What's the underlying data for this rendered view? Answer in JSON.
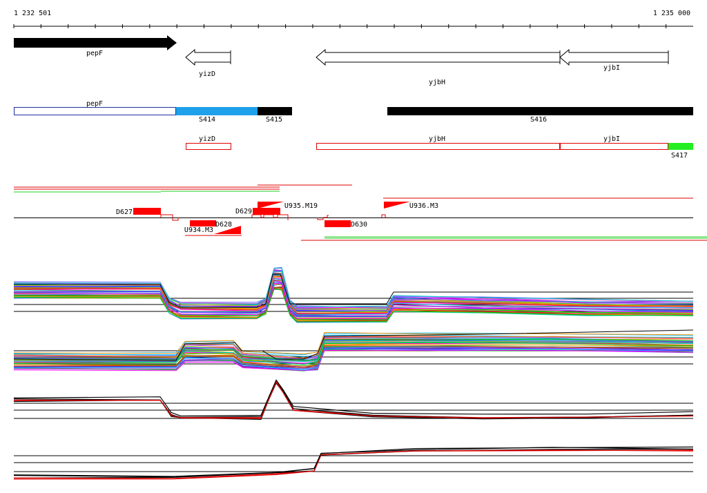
{
  "ruler": {
    "start_label": "1 232 501",
    "end_label": "1 235 000"
  },
  "genes": [
    {
      "name": "pepF",
      "strand": "+"
    },
    {
      "name": "yizD",
      "strand": "-"
    },
    {
      "name": "yjbH",
      "strand": "-"
    },
    {
      "name": "yjbI",
      "strand": "-"
    }
  ],
  "segments": [
    {
      "name": "pepF",
      "color": "#ffffff",
      "border": "#1f2fa0"
    },
    {
      "name": "S414",
      "color": "#1ea0ea"
    },
    {
      "name": "S415",
      "color": "#000000"
    },
    {
      "name": "S416",
      "color": "#000000"
    }
  ],
  "cds_boxes": [
    {
      "name": "yizD",
      "color": "#e00000"
    },
    {
      "name": "yjbH",
      "color": "#e00000"
    },
    {
      "name": "yjbI",
      "color": "#e00000"
    }
  ],
  "extra_segment": {
    "name": "S417",
    "color": "#22ee22"
  },
  "features": {
    "downshifts": [
      "D627",
      "D628",
      "D629",
      "D630"
    ],
    "upshifts": [
      "U934.M3",
      "U935.M19",
      "U936.M3"
    ]
  },
  "colors": {
    "feature_red": "#ff0000",
    "green": "#22cc22",
    "ink": "#000000"
  }
}
